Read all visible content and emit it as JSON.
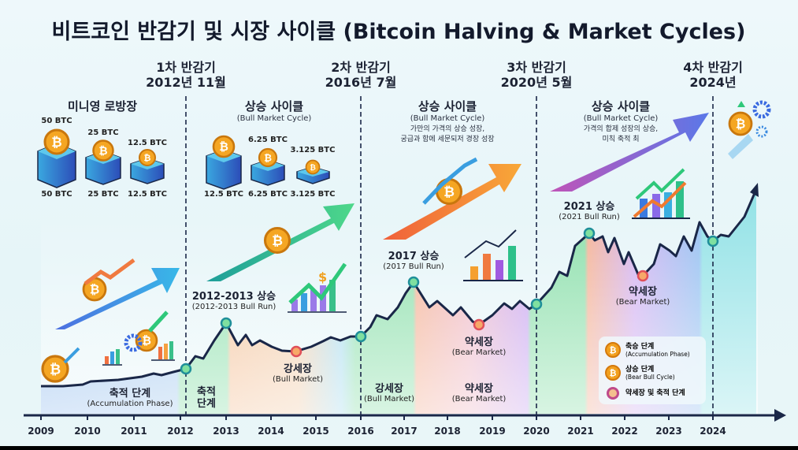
{
  "title": "비트코인 반감기 및 시장 사이클 (Bitcoin Halving & Market Cycles)",
  "halvings": [
    {
      "name": "1차 반감기",
      "date": "2012년 11월"
    },
    {
      "name": "2차 반감기",
      "date": "2016년 7월"
    },
    {
      "name": "3차 반감기",
      "date": "2020년 5월"
    },
    {
      "name": "4차 반감기",
      "date": "2024년"
    }
  ],
  "sections": {
    "s1": {
      "title": "미니영 로방장",
      "rewards_top": [
        "50 BTC",
        "25 BTC",
        "12.5 BTC"
      ],
      "rewards_bottom": [
        "50 BTC",
        "25 BTC",
        "12.5 BTC"
      ]
    },
    "s2": {
      "title": "상승 사이클",
      "subtitle": "(Bull Market Cycle)",
      "rewards_top": [
        "6.25 BTC",
        "3.125 BTC"
      ],
      "rewards_bottom": [
        "12.5 BTC",
        "6.25 BTC",
        "3.125 BTC"
      ]
    },
    "s3": {
      "title": "상승 사이클",
      "subtitle": "(Bull Market Cycle)",
      "desc1": "가만의 가격의 상승 성장,",
      "desc2": "궁급과 함에 세문되저 경장 성장"
    },
    "s4": {
      "title": "상승 사이클",
      "subtitle": "(Bull Market Cycle)",
      "desc1": "가격의 합제 성장의 상승,",
      "desc2": "미칙 축적 최"
    }
  },
  "labels": {
    "accum": {
      "ko": "축적 단계",
      "en": "(Accumulation Phase)"
    },
    "accum2": {
      "l1": "축적",
      "l2": "단계"
    },
    "run2013": {
      "ko": "2012-2013 상승",
      "en": "(2012-2013 Bull Run)"
    },
    "bull2015": {
      "ko": "강세장",
      "en": "(Bull Market)"
    },
    "bull2016": {
      "ko": "강세장",
      "en": "(Bull Market)"
    },
    "run2017": {
      "ko": "2017 상승",
      "en": "(2017 Bull Run)"
    },
    "bear2018": {
      "ko": "약세장",
      "en": "(Bear Market)"
    },
    "bear2019": {
      "ko": "약세장",
      "en": "(Bear Market)"
    },
    "run2021": {
      "ko": "2021 상승",
      "en": "(2021 Bull Run)"
    },
    "bear2022": {
      "ko": "약세장",
      "en": "(Bear Market)"
    }
  },
  "legend": [
    {
      "ko": "축승 단계",
      "en": "(Accumulation Phase)"
    },
    {
      "ko": "상승 단계",
      "en": "(Bear Bull Cycle)"
    },
    {
      "ko": "약세장 및 축적 단계"
    }
  ],
  "years": [
    "2009",
    "2010",
    "2011",
    "2012",
    "2013",
    "2014",
    "2015",
    "2016",
    "2017",
    "2018",
    "2019",
    "2020",
    "2021",
    "2022",
    "2023",
    "2024"
  ],
  "colors": {
    "line": "#1a2748",
    "coin": "#f2a01e",
    "axis": "#1a2748"
  }
}
